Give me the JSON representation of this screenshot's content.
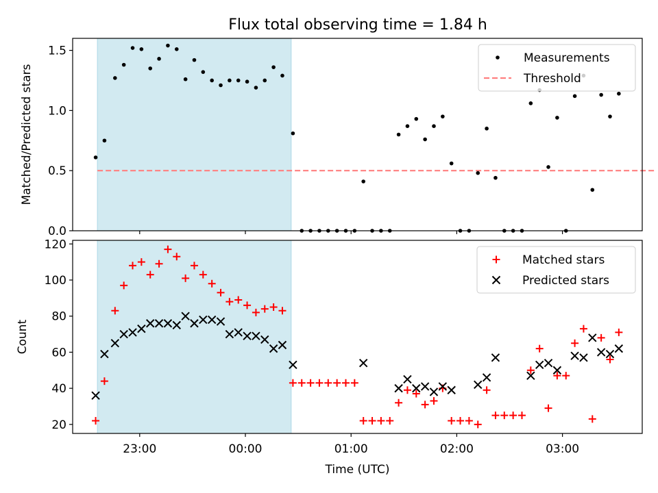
{
  "figure": {
    "title": "Flux total observing time = 1.84 h"
  },
  "colors": {
    "shade": "#add8e6",
    "threshold": "#ff7f7f",
    "measurement": "#000000",
    "matched": "#ff0000",
    "predicted": "#000000"
  },
  "chart_data": [
    {
      "type": "scatter",
      "ylabel": "Matched/Predicted stars",
      "xlabel": "",
      "ylim": [
        0,
        1.6
      ],
      "yticks": [
        "0.0",
        "0.5",
        "1.0",
        "1.5"
      ],
      "shaded_interval": [
        "22:36",
        "00:26"
      ],
      "legend": {
        "placement": "top-right",
        "entries": [
          "Measurements",
          "Threshold"
        ]
      },
      "threshold": {
        "name": "Threshold",
        "y": 0.5,
        "x_range": [
          "22:36",
          "03:52"
        ]
      },
      "series": [
        {
          "name": "Measurements",
          "points": [
            [
              "22:35",
              0.61
            ],
            [
              "22:40",
              0.75
            ],
            [
              "22:46",
              1.27
            ],
            [
              "22:51",
              1.38
            ],
            [
              "22:56",
              1.52
            ],
            [
              "23:01",
              1.51
            ],
            [
              "23:06",
              1.35
            ],
            [
              "23:11",
              1.43
            ],
            [
              "23:16",
              1.54
            ],
            [
              "23:21",
              1.51
            ],
            [
              "23:26",
              1.26
            ],
            [
              "23:31",
              1.42
            ],
            [
              "23:36",
              1.32
            ],
            [
              "23:41",
              1.25
            ],
            [
              "23:46",
              1.21
            ],
            [
              "23:51",
              1.25
            ],
            [
              "23:56",
              1.25
            ],
            [
              "00:01",
              1.24
            ],
            [
              "00:06",
              1.19
            ],
            [
              "00:11",
              1.25
            ],
            [
              "00:16",
              1.36
            ],
            [
              "00:21",
              1.29
            ],
            [
              "00:27",
              0.81
            ],
            [
              "00:32",
              0.0
            ],
            [
              "00:37",
              0.0
            ],
            [
              "00:42",
              0.0
            ],
            [
              "00:47",
              0.0
            ],
            [
              "00:52",
              0.0
            ],
            [
              "00:57",
              0.0
            ],
            [
              "01:02",
              0.0
            ],
            [
              "01:07",
              0.41
            ],
            [
              "01:12",
              0.0
            ],
            [
              "01:17",
              0.0
            ],
            [
              "01:22",
              0.0
            ],
            [
              "01:27",
              0.8
            ],
            [
              "01:32",
              0.87
            ],
            [
              "01:37",
              0.93
            ],
            [
              "01:42",
              0.76
            ],
            [
              "01:47",
              0.87
            ],
            [
              "01:52",
              0.95
            ],
            [
              "01:57",
              0.56
            ],
            [
              "02:02",
              0.0
            ],
            [
              "02:07",
              0.0
            ],
            [
              "02:12",
              0.48
            ],
            [
              "02:17",
              0.85
            ],
            [
              "02:22",
              0.44
            ],
            [
              "02:27",
              0.0
            ],
            [
              "02:32",
              0.0
            ],
            [
              "02:37",
              0.0
            ],
            [
              "02:42",
              1.06
            ],
            [
              "02:47",
              1.17
            ],
            [
              "02:52",
              0.53
            ],
            [
              "02:57",
              0.94
            ],
            [
              "03:02",
              0.0
            ],
            [
              "03:07",
              1.12
            ],
            [
              "03:12",
              1.29
            ],
            [
              "03:17",
              0.34
            ],
            [
              "03:22",
              1.13
            ],
            [
              "03:27",
              0.95
            ],
            [
              "03:32",
              1.14
            ]
          ]
        }
      ]
    },
    {
      "type": "scatter",
      "ylabel": "Count",
      "xlabel": "Time (UTC)",
      "ylim": [
        15,
        122
      ],
      "yticks": [
        "20",
        "40",
        "60",
        "80",
        "100",
        "120"
      ],
      "xticks": [
        "23:00",
        "00:00",
        "01:00",
        "02:00",
        "03:00"
      ],
      "shaded_interval": [
        "22:36",
        "00:26"
      ],
      "legend": {
        "placement": "top-right",
        "entries": [
          "Matched stars",
          "Predicted stars"
        ]
      },
      "series": [
        {
          "name": "Matched stars",
          "marker": "+",
          "points": [
            [
              "22:35",
              22
            ],
            [
              "22:40",
              44
            ],
            [
              "22:46",
              83
            ],
            [
              "22:51",
              97
            ],
            [
              "22:56",
              108
            ],
            [
              "23:01",
              110
            ],
            [
              "23:06",
              103
            ],
            [
              "23:11",
              109
            ],
            [
              "23:16",
              117
            ],
            [
              "23:21",
              113
            ],
            [
              "23:26",
              101
            ],
            [
              "23:31",
              108
            ],
            [
              "23:36",
              103
            ],
            [
              "23:41",
              98
            ],
            [
              "23:46",
              93
            ],
            [
              "23:51",
              88
            ],
            [
              "23:56",
              89
            ],
            [
              "00:01",
              86
            ],
            [
              "00:06",
              82
            ],
            [
              "00:11",
              84
            ],
            [
              "00:16",
              85
            ],
            [
              "00:21",
              83
            ],
            [
              "00:27",
              43
            ],
            [
              "00:32",
              43
            ],
            [
              "00:37",
              43
            ],
            [
              "00:42",
              43
            ],
            [
              "00:47",
              43
            ],
            [
              "00:52",
              43
            ],
            [
              "00:57",
              43
            ],
            [
              "01:02",
              43
            ],
            [
              "01:07",
              22
            ],
            [
              "01:12",
              22
            ],
            [
              "01:17",
              22
            ],
            [
              "01:22",
              22
            ],
            [
              "01:27",
              32
            ],
            [
              "01:32",
              39
            ],
            [
              "01:37",
              37
            ],
            [
              "01:42",
              31
            ],
            [
              "01:47",
              33
            ],
            [
              "01:52",
              40
            ],
            [
              "01:57",
              22
            ],
            [
              "02:02",
              22
            ],
            [
              "02:07",
              22
            ],
            [
              "02:12",
              20
            ],
            [
              "02:17",
              39
            ],
            [
              "02:22",
              25
            ],
            [
              "02:27",
              25
            ],
            [
              "02:32",
              25
            ],
            [
              "02:37",
              25
            ],
            [
              "02:42",
              50
            ],
            [
              "02:47",
              62
            ],
            [
              "02:52",
              29
            ],
            [
              "02:57",
              47
            ],
            [
              "03:02",
              47
            ],
            [
              "03:07",
              65
            ],
            [
              "03:12",
              73
            ],
            [
              "03:17",
              23
            ],
            [
              "03:22",
              68
            ],
            [
              "03:27",
              56
            ],
            [
              "03:32",
              71
            ]
          ]
        },
        {
          "name": "Predicted stars",
          "marker": "x",
          "points": [
            [
              "22:35",
              36
            ],
            [
              "22:40",
              59
            ],
            [
              "22:46",
              65
            ],
            [
              "22:51",
              70
            ],
            [
              "22:56",
              71
            ],
            [
              "23:01",
              73
            ],
            [
              "23:06",
              76
            ],
            [
              "23:11",
              76
            ],
            [
              "23:16",
              76
            ],
            [
              "23:21",
              75
            ],
            [
              "23:26",
              80
            ],
            [
              "23:31",
              76
            ],
            [
              "23:36",
              78
            ],
            [
              "23:41",
              78
            ],
            [
              "23:46",
              77
            ],
            [
              "23:51",
              70
            ],
            [
              "23:56",
              71
            ],
            [
              "00:01",
              69
            ],
            [
              "00:06",
              69
            ],
            [
              "00:11",
              67
            ],
            [
              "00:16",
              62
            ],
            [
              "00:21",
              64
            ],
            [
              "00:27",
              53
            ],
            [
              "01:07",
              54
            ],
            [
              "01:27",
              40
            ],
            [
              "01:32",
              45
            ],
            [
              "01:37",
              40
            ],
            [
              "01:42",
              41
            ],
            [
              "01:47",
              38
            ],
            [
              "01:52",
              41
            ],
            [
              "01:57",
              39
            ],
            [
              "02:12",
              42
            ],
            [
              "02:17",
              46
            ],
            [
              "02:22",
              57
            ],
            [
              "02:42",
              47
            ],
            [
              "02:47",
              53
            ],
            [
              "02:52",
              54
            ],
            [
              "02:57",
              50
            ],
            [
              "03:07",
              58
            ],
            [
              "03:12",
              57
            ],
            [
              "03:17",
              68
            ],
            [
              "03:22",
              60
            ],
            [
              "03:27",
              59
            ],
            [
              "03:32",
              62
            ]
          ]
        }
      ]
    }
  ]
}
